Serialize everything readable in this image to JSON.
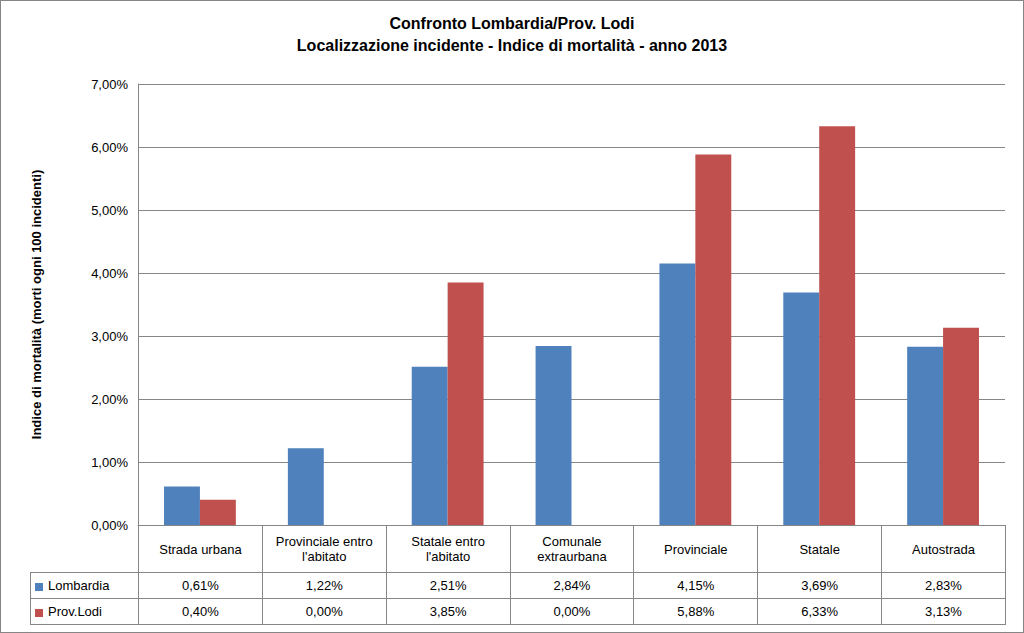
{
  "chart_data": {
    "type": "bar",
    "title": "Confronto Lombardia/Prov. Lodi",
    "subtitle": "Localizzazione incidente - Indice di mortalità - anno 2013",
    "y_label": "Indice di mortalità (morti ogni 100 incidenti)",
    "categories": [
      "Strada urbana",
      "Provinciale entro l'abitato",
      "Statale entro l'abitato",
      "Comunale extraurbana",
      "Provinciale",
      "Statale",
      "Autostrada"
    ],
    "series": [
      {
        "name": "Lombardia",
        "color": "#4F81BD",
        "values": [
          0.61,
          1.22,
          2.51,
          2.84,
          4.15,
          3.69,
          2.83
        ],
        "value_labels": [
          "0,61%",
          "1,22%",
          "2,51%",
          "2,84%",
          "4,15%",
          "3,69%",
          "2,83%"
        ]
      },
      {
        "name": "Prov.Lodi",
        "color": "#C0504D",
        "values": [
          0.4,
          0.0,
          3.85,
          0.0,
          5.88,
          6.33,
          3.13
        ],
        "value_labels": [
          "0,40%",
          "0,00%",
          "3,85%",
          "0,00%",
          "5,88%",
          "6,33%",
          "3,13%"
        ]
      }
    ],
    "ylim": [
      0,
      7
    ],
    "yticks": [
      {
        "value": 0,
        "label": "0,00%"
      },
      {
        "value": 1,
        "label": "1,00%"
      },
      {
        "value": 2,
        "label": "2,00%"
      },
      {
        "value": 3,
        "label": "3,00%"
      },
      {
        "value": 4,
        "label": "4,00%"
      },
      {
        "value": 5,
        "label": "5,00%"
      },
      {
        "value": 6,
        "label": "6,00%"
      },
      {
        "value": 7,
        "label": "7,00%"
      }
    ],
    "grid": true
  }
}
